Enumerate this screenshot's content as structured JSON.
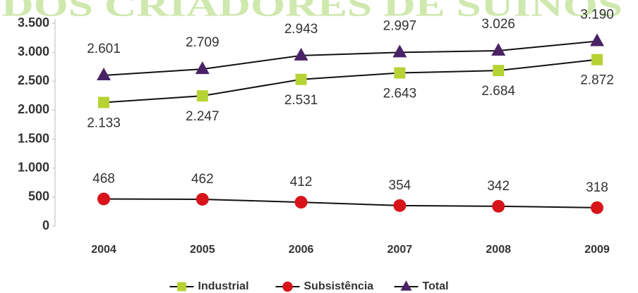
{
  "chart_data": {
    "type": "line",
    "watermark": "DOS CRIADORES DE SUINOS",
    "categories": [
      "2004",
      "2005",
      "2006",
      "2007",
      "2008",
      "2009"
    ],
    "series": [
      {
        "name": "Industrial",
        "color": "#b5d334",
        "marker": "square",
        "values": [
          2133,
          2247,
          2531,
          2643,
          2684,
          2872
        ],
        "value_labels": [
          "2.133",
          "2.247",
          "2.531",
          "2.643",
          "2.684",
          "2.872"
        ]
      },
      {
        "name": "Subsistência",
        "color": "#d7141a",
        "marker": "circle",
        "values": [
          468,
          462,
          412,
          354,
          342,
          318
        ]
      },
      {
        "name": "Total",
        "color": "#4a2266",
        "marker": "triangle",
        "values": [
          2601,
          2709,
          2943,
          2997,
          3026,
          3190
        ],
        "value_labels": [
          "2.601",
          "2.709",
          "2.943",
          "2.997",
          "3.026",
          "3.190"
        ]
      }
    ],
    "ylim": [
      0,
      3500
    ],
    "yticks": [
      0,
      500,
      {
        "value": 1000,
        "label": "1.000"
      },
      {
        "value": 1500,
        "label": "1.500"
      },
      {
        "value": 2000,
        "label": "2.000"
      },
      {
        "value": 2500,
        "label": "2.500"
      },
      {
        "value": 3000,
        "label": "3.000"
      },
      {
        "value": 3500,
        "label": "3.500"
      }
    ],
    "legend": "bottom"
  }
}
